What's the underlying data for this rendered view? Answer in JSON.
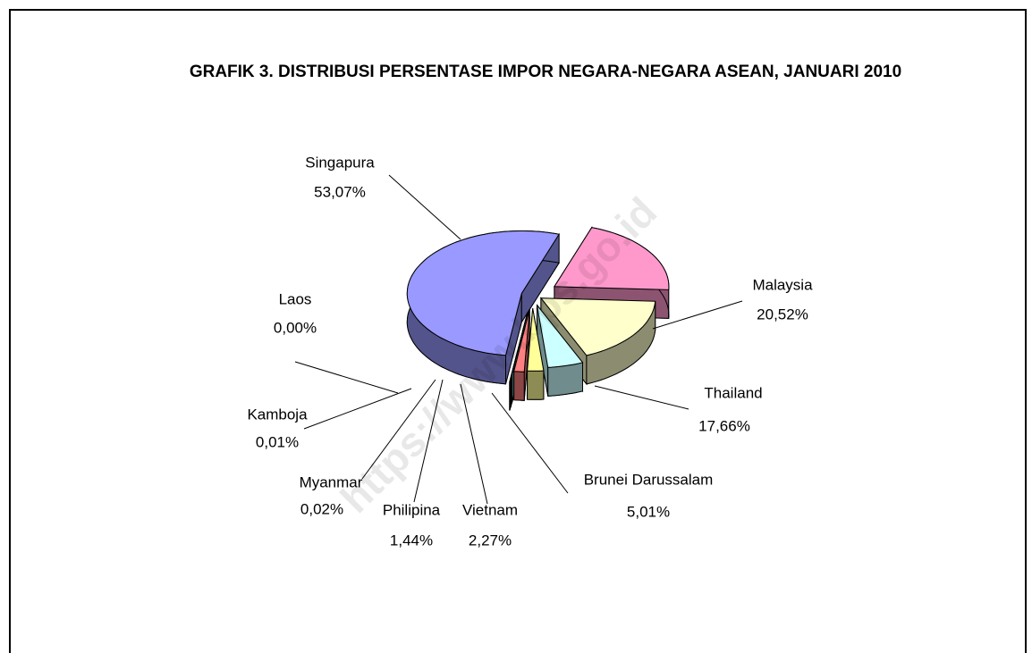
{
  "chart_data": {
    "type": "pie3d",
    "title": "GRAFIK 3. DISTRIBUSI PERSENTASE IMPOR NEGARA-NEGARA ASEAN, JANUARI 2010",
    "watermark": "https://www.bps.go.id",
    "categories": [
      "Singapura",
      "Malaysia",
      "Thailand",
      "Brunei Darussalam",
      "Vietnam",
      "Philipina",
      "Myanmar",
      "Kamboja",
      "Laos"
    ],
    "values": [
      53.07,
      20.52,
      17.66,
      5.01,
      2.27,
      1.44,
      0.02,
      0.01,
      0.0
    ],
    "value_labels": [
      "53,07%",
      "20,52%",
      "17,66%",
      "5,01%",
      "2,27%",
      "1,44%",
      "0,02%",
      "0,01%",
      "0,00%"
    ],
    "colors": [
      "#9999ff",
      "#ff99cc",
      "#ffffcc",
      "#ccffff",
      "#ffff99",
      "#ff8080",
      "#66b2b2",
      "#808000",
      "#996600"
    ]
  }
}
